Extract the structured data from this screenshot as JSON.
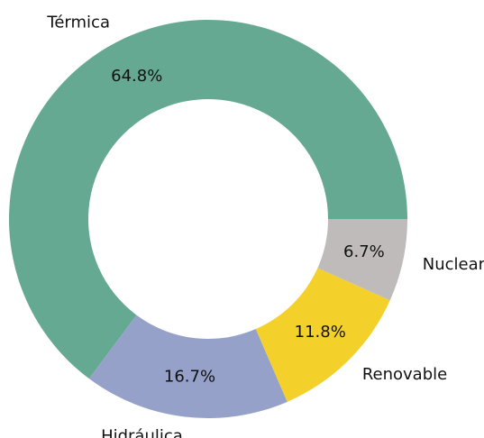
{
  "chart_data": {
    "type": "donut",
    "categories": [
      "Térmica",
      "Hidráulica",
      "Renovable",
      "Nuclear"
    ],
    "values": [
      64.8,
      16.7,
      11.8,
      6.7
    ],
    "value_labels": [
      "64.8%",
      "16.7%",
      "11.8%",
      "6.7%"
    ],
    "colors": [
      "#66a993",
      "#95a1c9",
      "#f3d12a",
      "#bfbbba"
    ]
  }
}
